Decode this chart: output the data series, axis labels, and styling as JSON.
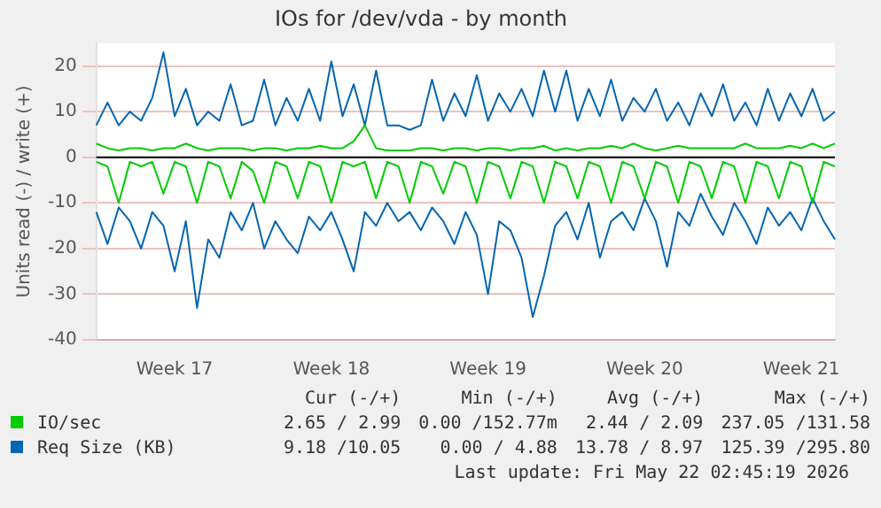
{
  "chart_data": {
    "type": "line",
    "title": "IOs for /dev/vda - by month",
    "ylabel": "Units read (-) / write (+)",
    "categories": [
      null,
      null,
      null,
      null,
      null,
      null,
      null,
      "Week 17",
      null,
      null,
      null,
      null,
      null,
      null,
      null,
      null,
      null,
      null,
      null,
      null,
      null,
      "Week 18",
      null,
      null,
      null,
      null,
      null,
      null,
      null,
      null,
      null,
      null,
      null,
      null,
      null,
      "Week 19",
      null,
      null,
      null,
      null,
      null,
      null,
      null,
      null,
      null,
      null,
      null,
      null,
      null,
      "Week 20",
      null,
      null,
      null,
      null,
      null,
      null,
      null,
      null,
      null,
      null,
      null,
      null,
      null,
      "Week 21",
      null,
      null,
      null
    ],
    "ylim": [
      -40,
      25
    ],
    "yticks": [
      -40,
      -30,
      -20,
      -10,
      0,
      10,
      20
    ],
    "grid": "y",
    "legend": "bottom",
    "marker": "none",
    "line_style": "solid",
    "series": [
      {
        "name": "IO/sec",
        "color": "#00cc00",
        "values": [
          3,
          2,
          1.5,
          2,
          2,
          1.5,
          2,
          2,
          3,
          2,
          1.5,
          2,
          2,
          2,
          1.5,
          2,
          2,
          1.5,
          2,
          2,
          2.5,
          2,
          2,
          3.5,
          7,
          2,
          1.5,
          1.5,
          1.5,
          2,
          2,
          1.5,
          2,
          2,
          1.5,
          2,
          2,
          1.5,
          2,
          2,
          2.5,
          1.5,
          2,
          1.5,
          2,
          2,
          2.5,
          2,
          3,
          2,
          1.5,
          2,
          2.5,
          2,
          2,
          2,
          2,
          2,
          3,
          2,
          2,
          2,
          2.5,
          2,
          3,
          2,
          3
        ]
      },
      {
        "color": "#00cc00",
        "values": [
          -1,
          -2,
          -10,
          -1,
          -2,
          -1,
          -8,
          -1,
          -2,
          -10,
          -1,
          -2,
          -9,
          -1,
          -3,
          -10,
          -1,
          -2,
          -9,
          -1,
          -2,
          -10,
          -1,
          -2,
          -1,
          -9,
          -1,
          -2,
          -10,
          -1,
          -2,
          -8,
          -1,
          -2,
          -10,
          -1,
          -2,
          -9,
          -1,
          -2,
          -10,
          -1,
          -2,
          -9,
          -1,
          -2,
          -10,
          -1,
          -2,
          -9,
          -1,
          -2,
          -10,
          -1,
          -2,
          -9,
          -1,
          -2,
          -10,
          -1,
          -2,
          -9,
          -1,
          -2,
          -10,
          -1,
          -2
        ]
      },
      {
        "name": "Req Size (KB)",
        "color": "#0066b3",
        "values": [
          7,
          12,
          7,
          10,
          8,
          13,
          23,
          9,
          15,
          7,
          10,
          8,
          16,
          7,
          8,
          17,
          7,
          13,
          8,
          15,
          8,
          21,
          9,
          16,
          7,
          19,
          7,
          7,
          6,
          7,
          17,
          8,
          14,
          9,
          18,
          8,
          14,
          10,
          15,
          9,
          19,
          10,
          19,
          8,
          15,
          9,
          17,
          8,
          13,
          10,
          15,
          8,
          12,
          7,
          14,
          9,
          16,
          8,
          12,
          7,
          15,
          8,
          14,
          9,
          15,
          8,
          10
        ]
      },
      {
        "color": "#0066b3",
        "values": [
          -12,
          -19,
          -11,
          -14,
          -20,
          -12,
          -15,
          -25,
          -14,
          -33,
          -18,
          -22,
          -12,
          -16,
          -10,
          -20,
          -14,
          -18,
          -21,
          -13,
          -16,
          -12,
          -18,
          -25,
          -12,
          -15,
          -10,
          -14,
          -12,
          -16,
          -11,
          -14,
          -19,
          -12,
          -17,
          -30,
          -14,
          -16,
          -22,
          -35,
          -26,
          -15,
          -12,
          -18,
          -10,
          -22,
          -14,
          -12,
          -16,
          -9,
          -14,
          -24,
          -12,
          -15,
          -8,
          -13,
          -17,
          -10,
          -14,
          -19,
          -11,
          -15,
          -12,
          -16,
          -9,
          -14,
          -18
        ]
      }
    ],
    "ref_lines": [
      {
        "axis": "y",
        "value": 0,
        "color": "#000000"
      }
    ],
    "annotations": [
      "Cur (-/+)",
      "Min (-/+)",
      "Avg (-/+)",
      "Max (-/+)",
      "2.65 / 2.99",
      "0.00 /152.77m",
      "2.44 / 2.09",
      "237.05 /131.58",
      "9.18 /10.05",
      "0.00 / 4.88",
      "13.78 / 8.97",
      "125.39 /295.80",
      "Last update: Fri May 22 02:45:19 2026"
    ]
  }
}
